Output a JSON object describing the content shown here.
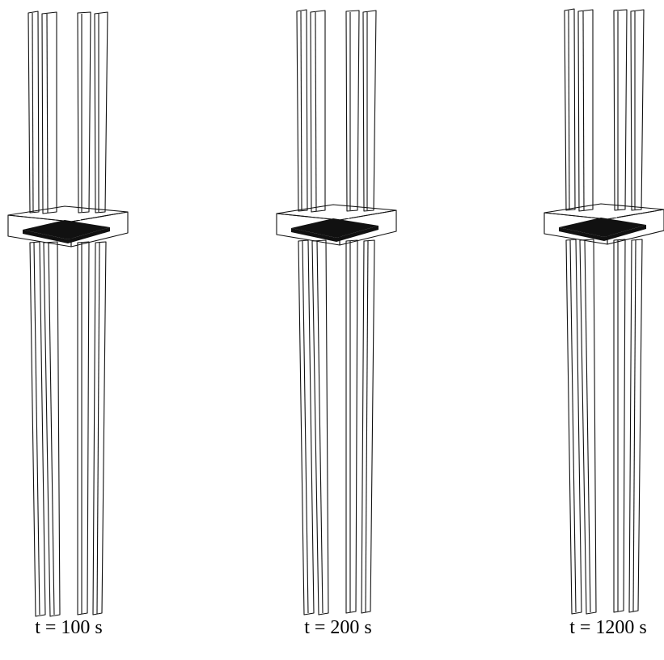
{
  "panels": [
    {
      "label": "t = 100 s"
    },
    {
      "label": "t = 200 s"
    },
    {
      "label": "t = 1200 s"
    }
  ]
}
